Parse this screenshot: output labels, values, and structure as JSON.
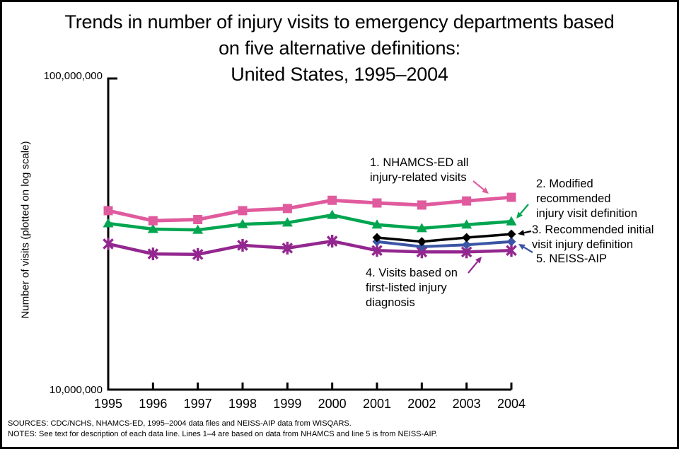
{
  "frame": {
    "background_color": "#ffffff",
    "border_color": "#000000"
  },
  "chart_data": {
    "type": "line",
    "title": "Trends in number of injury visits to emergency departments based on five alternative definitions: United States, 1995–2004",
    "title_lines": [
      "Trends in number of injury visits to emergency departments based",
      "on five alternative definitions:",
      "United States, 1995–2004"
    ],
    "ylabel": "Number of visits (plotted on log scale)",
    "xlabel": "",
    "y_scale": "log",
    "ylim_visits": [
      10000000,
      100000000
    ],
    "y_ticks": [
      {
        "label": "100,000,000",
        "value": 100000000
      },
      {
        "label": "10,000,000",
        "value": 10000000
      }
    ],
    "grid": "off",
    "legend_position": "inline-annotations-with-arrows",
    "years": [
      1995,
      1996,
      1997,
      1998,
      1999,
      2000,
      2001,
      2002,
      2003,
      2004
    ],
    "x_labels": [
      "1995",
      "1996",
      "1997",
      "1998",
      "1999",
      "2000",
      "2001",
      "2002",
      "2003",
      "2004"
    ],
    "values_unit": "million visits (estimated from log-scale plot)",
    "series": [
      {
        "id": 1,
        "label": "1. NHAMCS-ED all injury-related visits",
        "label_lines": [
          "1. NHAMCS-ED all",
          "injury-related visits"
        ],
        "color": "#e05b9e",
        "marker": "square",
        "values_millions": [
          37.6,
          34.9,
          35.2,
          37.6,
          38.2,
          40.6,
          39.8,
          39.2,
          40.4,
          41.5
        ]
      },
      {
        "id": 2,
        "label": "2. Modified recommended injury visit definition",
        "label_lines": [
          "2. Modified",
          "recommended",
          "injury visit definition"
        ],
        "color": "#00a550",
        "marker": "triangle",
        "values_millions": [
          34.2,
          32.8,
          32.6,
          34.0,
          34.4,
          36.4,
          33.9,
          33.0,
          33.9,
          34.7
        ]
      },
      {
        "id": 3,
        "label": "3. Recommended initial visit injury definition",
        "label_lines": [
          "3. Recommended initial",
          "visit injury definition"
        ],
        "color": "#000000",
        "marker": "diamond",
        "values_millions": [
          null,
          null,
          null,
          null,
          null,
          null,
          30.8,
          29.9,
          30.8,
          31.6
        ]
      },
      {
        "id": 4,
        "label": "4. Visits based on first-listed injury diagnosis",
        "label_lines": [
          "4. Visits based on",
          "first-listed injury",
          "diagnosis"
        ],
        "color": "#93278f",
        "marker": "asterisk",
        "values_millions": [
          29.4,
          27.3,
          27.2,
          29.1,
          28.5,
          30.0,
          28.0,
          27.7,
          27.7,
          28.0
        ]
      },
      {
        "id": 5,
        "label": "5. NEISS-AIP",
        "label_lines": [
          "5. NEISS-AIP"
        ],
        "color": "#3b54a4",
        "marker": "diamond",
        "values_millions": [
          null,
          null,
          null,
          null,
          null,
          null,
          29.9,
          28.8,
          29.2,
          29.9
        ]
      }
    ],
    "axis_color": "#000000"
  },
  "footer": {
    "sources": "SOURCES: CDC/NCHS, NHAMCS-ED, 1995–2004 data files and NEISS-AIP data from WISQARS.",
    "notes": "NOTES: See text for description of each data line. Lines 1–4 are based on data from NHAMCS and line 5 is from NEISS-AIP."
  }
}
